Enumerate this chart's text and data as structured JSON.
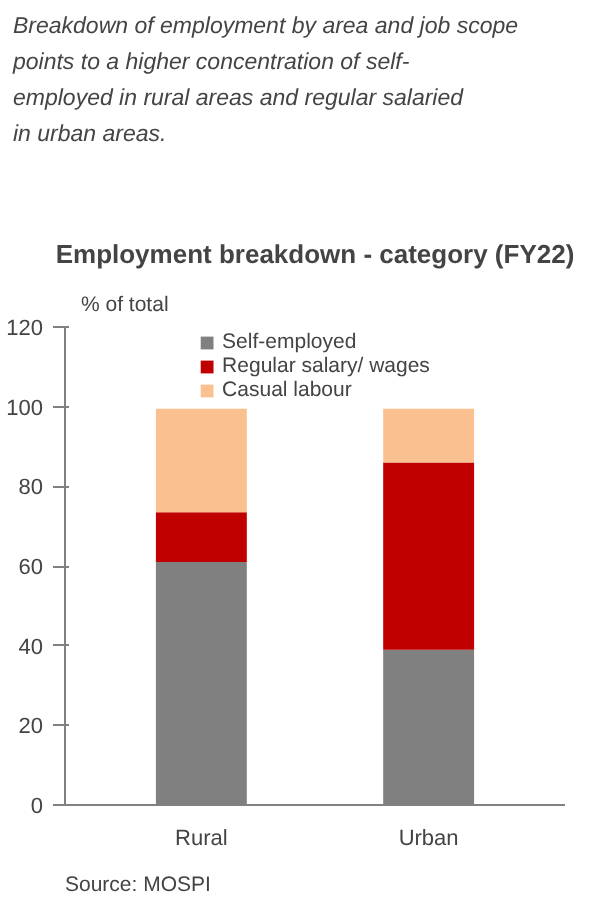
{
  "chart_data": {
    "type": "bar",
    "stacked": true,
    "title": "Employment breakdown - category (FY22)",
    "ylabel": "% of total",
    "categories": [
      "Rural",
      "Urban"
    ],
    "series": [
      {
        "name": "Self-employed",
        "color": "#808080",
        "values": [
          61,
          39
        ]
      },
      {
        "name": "Regular salary/ wages",
        "color": "#c00000",
        "values": [
          12.5,
          47
        ]
      },
      {
        "name": "Casual labour",
        "color": "#fac090",
        "values": [
          26,
          13.5
        ]
      }
    ],
    "ylim": [
      0,
      120
    ],
    "yticks": [
      0,
      20,
      40,
      60,
      80,
      100,
      120
    ],
    "grid": false,
    "legend": "top",
    "annotations": [
      "Breakdown of employment by area and job scope points to a higher concentration of self-employed in rural areas and regular salaried in urban areas.",
      "Source: MOSPI"
    ]
  }
}
